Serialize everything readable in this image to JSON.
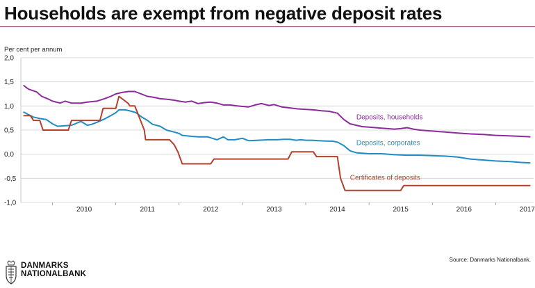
{
  "header": {
    "title": "Households are exempt from negative deposit rates"
  },
  "footer": {
    "source": "Source: Danmarks Nationalbank.",
    "logo_line1": "DANMARKS",
    "logo_line2": "NATIONALBANK"
  },
  "colors": {
    "households": "#8b2c9a",
    "corporates": "#1f8cc4",
    "certificates": "#b3402a",
    "accent_rule": "#8c2a4a"
  },
  "chart_data": {
    "type": "line",
    "title": "Households are exempt from negative deposit rates",
    "ylabel": "Per cent per annum",
    "ylim": [
      -1.0,
      2.0
    ],
    "xlim": [
      2009.5,
      2017.6
    ],
    "y_ticks": [
      "2,0",
      "1,5",
      "1,0",
      "0,5",
      "0,0",
      "-0,5",
      "-1,0"
    ],
    "y_tick_values": [
      2.0,
      1.5,
      1.0,
      0.5,
      0.0,
      -0.5,
      -1.0
    ],
    "x_ticks": [
      "2010",
      "2011",
      "2012",
      "2013",
      "2014",
      "2015",
      "2016",
      "2017"
    ],
    "grid": true,
    "series": [
      {
        "name": "Deposits, households",
        "color": "#8b2c9a",
        "points": [
          [
            2009.54,
            1.43
          ],
          [
            2009.62,
            1.35
          ],
          [
            2009.75,
            1.29
          ],
          [
            2009.83,
            1.2
          ],
          [
            2009.92,
            1.15
          ],
          [
            2010.0,
            1.1
          ],
          [
            2010.12,
            1.06
          ],
          [
            2010.2,
            1.1
          ],
          [
            2010.3,
            1.06
          ],
          [
            2010.45,
            1.06
          ],
          [
            2010.55,
            1.08
          ],
          [
            2010.7,
            1.1
          ],
          [
            2010.82,
            1.15
          ],
          [
            2010.92,
            1.2
          ],
          [
            2011.0,
            1.25
          ],
          [
            2011.1,
            1.28
          ],
          [
            2011.2,
            1.3
          ],
          [
            2011.3,
            1.3
          ],
          [
            2011.42,
            1.24
          ],
          [
            2011.5,
            1.2
          ],
          [
            2011.6,
            1.18
          ],
          [
            2011.7,
            1.15
          ],
          [
            2011.8,
            1.14
          ],
          [
            2011.92,
            1.12
          ],
          [
            2012.0,
            1.1
          ],
          [
            2012.1,
            1.08
          ],
          [
            2012.2,
            1.1
          ],
          [
            2012.3,
            1.05
          ],
          [
            2012.4,
            1.07
          ],
          [
            2012.5,
            1.08
          ],
          [
            2012.6,
            1.06
          ],
          [
            2012.7,
            1.02
          ],
          [
            2012.8,
            1.02
          ],
          [
            2012.92,
            1.0
          ],
          [
            2013.0,
            0.99
          ],
          [
            2013.1,
            0.98
          ],
          [
            2013.2,
            1.02
          ],
          [
            2013.3,
            1.05
          ],
          [
            2013.42,
            1.01
          ],
          [
            2013.5,
            1.03
          ],
          [
            2013.62,
            0.98
          ],
          [
            2013.75,
            0.96
          ],
          [
            2013.87,
            0.94
          ],
          [
            2014.0,
            0.93
          ],
          [
            2014.12,
            0.92
          ],
          [
            2014.25,
            0.9
          ],
          [
            2014.37,
            0.89
          ],
          [
            2014.5,
            0.85
          ],
          [
            2014.6,
            0.72
          ],
          [
            2014.7,
            0.63
          ],
          [
            2014.8,
            0.6
          ],
          [
            2014.9,
            0.57
          ],
          [
            2015.0,
            0.56
          ],
          [
            2015.2,
            0.54
          ],
          [
            2015.4,
            0.52
          ],
          [
            2015.5,
            0.53
          ],
          [
            2015.6,
            0.55
          ],
          [
            2015.7,
            0.52
          ],
          [
            2015.8,
            0.5
          ],
          [
            2016.0,
            0.48
          ],
          [
            2016.2,
            0.46
          ],
          [
            2016.4,
            0.44
          ],
          [
            2016.6,
            0.42
          ],
          [
            2016.8,
            0.41
          ],
          [
            2017.0,
            0.39
          ],
          [
            2017.2,
            0.38
          ],
          [
            2017.4,
            0.37
          ],
          [
            2017.55,
            0.36
          ]
        ],
        "label": "Deposits, households"
      },
      {
        "name": "Deposits, corporates",
        "color": "#1f8cc4",
        "points": [
          [
            2009.54,
            0.88
          ],
          [
            2009.62,
            0.82
          ],
          [
            2009.7,
            0.77
          ],
          [
            2009.8,
            0.74
          ],
          [
            2009.9,
            0.72
          ],
          [
            2010.0,
            0.63
          ],
          [
            2010.08,
            0.58
          ],
          [
            2010.2,
            0.59
          ],
          [
            2010.3,
            0.6
          ],
          [
            2010.45,
            0.68
          ],
          [
            2010.55,
            0.6
          ],
          [
            2010.62,
            0.62
          ],
          [
            2010.7,
            0.66
          ],
          [
            2010.82,
            0.73
          ],
          [
            2010.92,
            0.8
          ],
          [
            2011.0,
            0.86
          ],
          [
            2011.05,
            0.92
          ],
          [
            2011.15,
            0.92
          ],
          [
            2011.25,
            0.89
          ],
          [
            2011.32,
            0.86
          ],
          [
            2011.4,
            0.78
          ],
          [
            2011.5,
            0.7
          ],
          [
            2011.58,
            0.62
          ],
          [
            2011.7,
            0.58
          ],
          [
            2011.8,
            0.5
          ],
          [
            2011.92,
            0.46
          ],
          [
            2012.0,
            0.43
          ],
          [
            2012.05,
            0.39
          ],
          [
            2012.2,
            0.37
          ],
          [
            2012.3,
            0.36
          ],
          [
            2012.45,
            0.36
          ],
          [
            2012.5,
            0.34
          ],
          [
            2012.6,
            0.3
          ],
          [
            2012.7,
            0.36
          ],
          [
            2012.77,
            0.3
          ],
          [
            2012.88,
            0.3
          ],
          [
            2013.0,
            0.33
          ],
          [
            2013.1,
            0.28
          ],
          [
            2013.25,
            0.29
          ],
          [
            2013.4,
            0.3
          ],
          [
            2013.55,
            0.3
          ],
          [
            2013.65,
            0.31
          ],
          [
            2013.75,
            0.31
          ],
          [
            2013.85,
            0.29
          ],
          [
            2013.92,
            0.3
          ],
          [
            2014.0,
            0.29
          ],
          [
            2014.1,
            0.29
          ],
          [
            2014.2,
            0.28
          ],
          [
            2014.35,
            0.27
          ],
          [
            2014.42,
            0.27
          ],
          [
            2014.5,
            0.25
          ],
          [
            2014.6,
            0.18
          ],
          [
            2014.7,
            0.07
          ],
          [
            2014.8,
            0.03
          ],
          [
            2015.0,
            0.01
          ],
          [
            2015.2,
            0.01
          ],
          [
            2015.4,
            -0.01
          ],
          [
            2015.6,
            -0.02
          ],
          [
            2015.8,
            -0.02
          ],
          [
            2016.0,
            -0.03
          ],
          [
            2016.2,
            -0.04
          ],
          [
            2016.4,
            -0.06
          ],
          [
            2016.6,
            -0.1
          ],
          [
            2016.8,
            -0.12
          ],
          [
            2017.0,
            -0.14
          ],
          [
            2017.2,
            -0.15
          ],
          [
            2017.4,
            -0.17
          ],
          [
            2017.55,
            -0.18
          ]
        ],
        "label": "Deposits, corporates"
      },
      {
        "name": "Certificates of deposits",
        "color": "#b3402a",
        "points": [
          [
            2009.54,
            0.8
          ],
          [
            2009.65,
            0.8
          ],
          [
            2009.7,
            0.7
          ],
          [
            2009.8,
            0.7
          ],
          [
            2009.85,
            0.5
          ],
          [
            2010.25,
            0.5
          ],
          [
            2010.3,
            0.7
          ],
          [
            2010.75,
            0.7
          ],
          [
            2010.8,
            0.95
          ],
          [
            2011.0,
            0.95
          ],
          [
            2011.05,
            1.2
          ],
          [
            2011.2,
            1.05
          ],
          [
            2011.22,
            1.0
          ],
          [
            2011.3,
            1.0
          ],
          [
            2011.45,
            0.5
          ],
          [
            2011.47,
            0.3
          ],
          [
            2011.85,
            0.3
          ],
          [
            2011.92,
            0.2
          ],
          [
            2011.98,
            0.05
          ],
          [
            2012.05,
            -0.2
          ],
          [
            2012.5,
            -0.2
          ],
          [
            2012.55,
            -0.1
          ],
          [
            2013.72,
            -0.1
          ],
          [
            2013.78,
            0.05
          ],
          [
            2014.12,
            0.05
          ],
          [
            2014.17,
            -0.05
          ],
          [
            2014.5,
            -0.05
          ],
          [
            2014.55,
            -0.5
          ],
          [
            2014.62,
            -0.75
          ],
          [
            2015.5,
            -0.75
          ],
          [
            2015.55,
            -0.65
          ],
          [
            2017.55,
            -0.65
          ]
        ],
        "label": "Certificates of deposits"
      }
    ]
  }
}
